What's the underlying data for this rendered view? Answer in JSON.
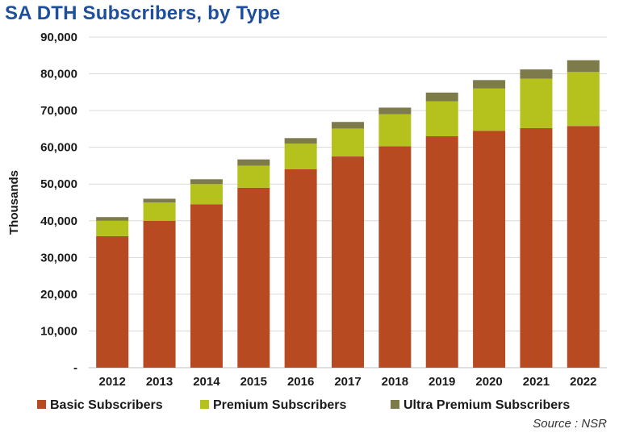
{
  "chart_data": {
    "type": "bar",
    "stacked": true,
    "title": "SA DTH Subscribers, by Type",
    "ylabel": "Thousands",
    "xlabel": "",
    "categories": [
      "2012",
      "2013",
      "2014",
      "2015",
      "2016",
      "2017",
      "2018",
      "2019",
      "2020",
      "2021",
      "2022"
    ],
    "ylim": [
      0,
      90000
    ],
    "yticks": [
      0,
      10000,
      20000,
      30000,
      40000,
      50000,
      60000,
      70000,
      80000,
      90000
    ],
    "ytick_labels": [
      "-",
      "10,000",
      "20,000",
      "30,000",
      "40,000",
      "50,000",
      "60,000",
      "70,000",
      "80,000",
      "90,000"
    ],
    "grid": true,
    "legend_position": "bottom",
    "source": "Source : NSR",
    "series": [
      {
        "name": "Basic Subscribers",
        "color": "#b84a22",
        "values": [
          35800,
          40000,
          44500,
          49000,
          54000,
          57500,
          60300,
          63000,
          64500,
          65200,
          65800
        ]
      },
      {
        "name": "Premium Subscribers",
        "color": "#b5c11d",
        "values": [
          4200,
          5000,
          5500,
          6000,
          7000,
          7600,
          8700,
          9500,
          11500,
          13500,
          14700
        ]
      },
      {
        "name": "Ultra Premium Subscribers",
        "color": "#7e7b4a",
        "values": [
          1000,
          1000,
          1300,
          1700,
          1500,
          1800,
          1800,
          2400,
          2300,
          2500,
          3200
        ]
      }
    ]
  }
}
